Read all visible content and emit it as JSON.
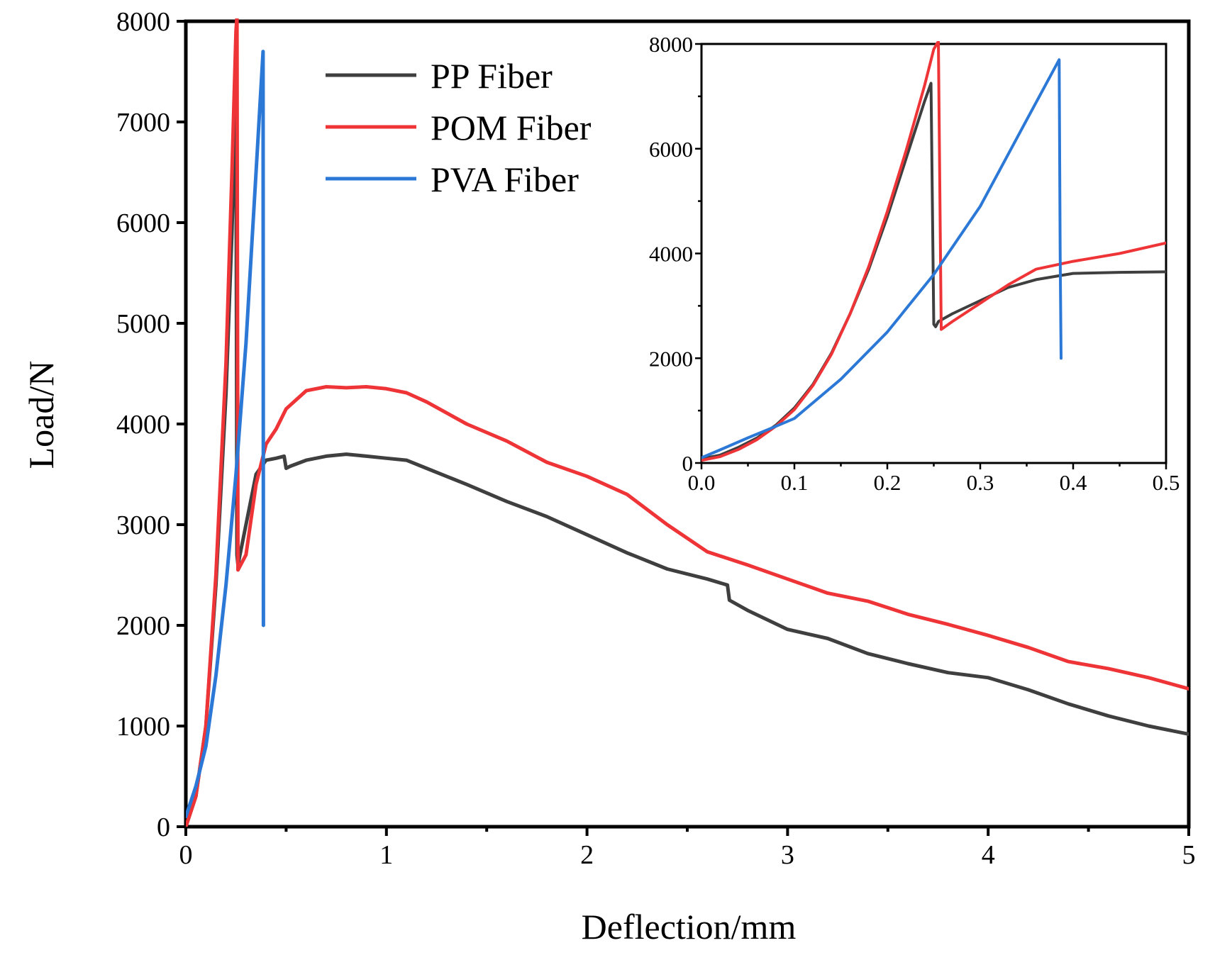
{
  "colors": {
    "PP Fiber": "#3f3f3f",
    "POM Fiber": "#ee3437",
    "PVA Fiber": "#2b78d6"
  },
  "chart_data": [
    {
      "id": "main",
      "type": "line",
      "title": "",
      "xlabel": "Deflection/mm",
      "ylabel": "Load/N",
      "xlim": [
        0,
        5
      ],
      "ylim": [
        0,
        8000
      ],
      "xticks": [
        0,
        1,
        2,
        3,
        4,
        5
      ],
      "xtick_labels": [
        "0",
        "1",
        "2",
        "3",
        "4",
        "5"
      ],
      "yticks": [
        0,
        1000,
        2000,
        3000,
        4000,
        5000,
        6000,
        7000,
        8000
      ],
      "ytick_labels": [
        "0",
        "1000",
        "2000",
        "3000",
        "4000",
        "5000",
        "6000",
        "7000",
        "8000"
      ],
      "legend": {
        "position": "top-center",
        "entries": [
          "PP Fiber",
          "POM Fiber",
          "PVA Fiber"
        ]
      },
      "series": [
        {
          "name": "PP Fiber",
          "x": [
            0,
            0.05,
            0.1,
            0.15,
            0.2,
            0.23,
            0.245,
            0.25,
            0.255,
            0.26,
            0.3,
            0.35,
            0.4,
            0.45,
            0.49,
            0.5,
            0.52,
            0.6,
            0.7,
            0.8,
            0.9,
            1.0,
            1.1,
            1.2,
            1.4,
            1.6,
            1.8,
            2.0,
            2.2,
            2.4,
            2.6,
            2.7,
            2.71,
            2.8,
            3.0,
            3.2,
            3.4,
            3.6,
            3.8,
            4.0,
            4.2,
            4.4,
            4.6,
            4.8,
            5.0
          ],
          "y": [
            0,
            300,
            1000,
            2400,
            4300,
            5900,
            7000,
            7280,
            2700,
            2600,
            3000,
            3500,
            3640,
            3660,
            3680,
            3560,
            3580,
            3640,
            3680,
            3700,
            3680,
            3660,
            3640,
            3560,
            3400,
            3230,
            3080,
            2900,
            2720,
            2560,
            2460,
            2400,
            2250,
            2150,
            1960,
            1870,
            1720,
            1620,
            1530,
            1480,
            1360,
            1220,
            1100,
            1000,
            920
          ]
        },
        {
          "name": "POM Fiber",
          "x": [
            0,
            0.05,
            0.1,
            0.15,
            0.2,
            0.23,
            0.25,
            0.255,
            0.26,
            0.3,
            0.35,
            0.4,
            0.45,
            0.5,
            0.6,
            0.7,
            0.8,
            0.9,
            1.0,
            1.1,
            1.2,
            1.4,
            1.6,
            1.8,
            2.0,
            2.2,
            2.4,
            2.6,
            2.8,
            3.0,
            3.2,
            3.4,
            3.6,
            3.8,
            4.0,
            4.2,
            4.4,
            4.6,
            4.8,
            5.0
          ],
          "y": [
            0,
            300,
            1000,
            2500,
            4600,
            6500,
            7900,
            8050,
            2550,
            2700,
            3400,
            3800,
            3950,
            4150,
            4330,
            4370,
            4360,
            4370,
            4350,
            4310,
            4220,
            4000,
            3830,
            3620,
            3480,
            3300,
            3000,
            2730,
            2600,
            2460,
            2320,
            2240,
            2110,
            2010,
            1900,
            1780,
            1640,
            1570,
            1480,
            1370
          ]
        },
        {
          "name": "PVA Fiber",
          "x": [
            0,
            0.05,
            0.1,
            0.15,
            0.2,
            0.25,
            0.3,
            0.35,
            0.385,
            0.386,
            0.387
          ],
          "y": [
            100,
            400,
            800,
            1500,
            2400,
            3500,
            4800,
            6500,
            7700,
            4000,
            2000
          ]
        }
      ]
    },
    {
      "id": "inset",
      "type": "line",
      "title": "",
      "xlabel": "",
      "ylabel": "",
      "xlim": [
        0,
        0.5
      ],
      "ylim": [
        0,
        8000
      ],
      "xticks": [
        0,
        0.1,
        0.2,
        0.3,
        0.4,
        0.5
      ],
      "xtick_labels": [
        "0.0",
        "0.1",
        "0.2",
        "0.3",
        "0.4",
        "0.5"
      ],
      "yticks": [
        0,
        2000,
        4000,
        6000,
        8000
      ],
      "ytick_labels": [
        "0",
        "2000",
        "4000",
        "6000",
        "8000"
      ],
      "series": [
        {
          "name": "PP Fiber",
          "x": [
            0,
            0.02,
            0.04,
            0.06,
            0.08,
            0.1,
            0.12,
            0.14,
            0.16,
            0.18,
            0.2,
            0.22,
            0.24,
            0.247,
            0.25,
            0.252,
            0.255,
            0.27,
            0.3,
            0.33,
            0.36,
            0.4,
            0.45,
            0.5
          ],
          "y": [
            80,
            150,
            300,
            480,
            720,
            1050,
            1500,
            2100,
            2850,
            3700,
            4700,
            5800,
            6900,
            7250,
            2650,
            2600,
            2700,
            2850,
            3100,
            3350,
            3500,
            3620,
            3640,
            3650
          ]
        },
        {
          "name": "POM Fiber",
          "x": [
            0,
            0.02,
            0.04,
            0.06,
            0.08,
            0.1,
            0.12,
            0.14,
            0.16,
            0.18,
            0.2,
            0.22,
            0.24,
            0.25,
            0.255,
            0.258,
            0.27,
            0.3,
            0.33,
            0.36,
            0.4,
            0.45,
            0.5
          ],
          "y": [
            50,
            120,
            260,
            450,
            700,
            1020,
            1480,
            2080,
            2850,
            3750,
            4800,
            5950,
            7200,
            7900,
            8050,
            2550,
            2700,
            3050,
            3400,
            3700,
            3850,
            4000,
            4200
          ]
        },
        {
          "name": "PVA Fiber",
          "x": [
            0,
            0.02,
            0.05,
            0.08,
            0.1,
            0.15,
            0.2,
            0.25,
            0.3,
            0.35,
            0.385,
            0.386,
            0.387
          ],
          "y": [
            100,
            250,
            480,
            700,
            850,
            1600,
            2500,
            3600,
            4900,
            6550,
            7700,
            4000,
            2000
          ]
        }
      ]
    }
  ]
}
